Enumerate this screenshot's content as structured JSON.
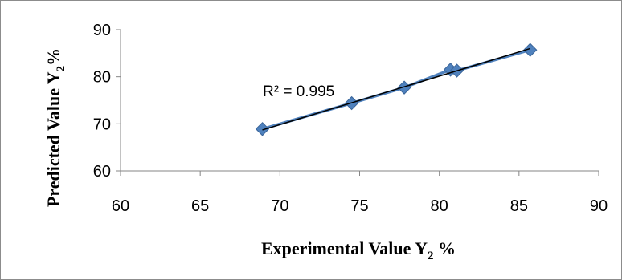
{
  "chart_data": {
    "type": "scatter",
    "xlabel": "Experimental Value  Y",
    "xlabel_sub": "2",
    "xlabel_suffix": " %",
    "ylabel": "Predicted Value  Y",
    "ylabel_sub": "2",
    "ylabel_suffix": "%",
    "xlim": [
      60,
      90
    ],
    "ylim": [
      60,
      90
    ],
    "xticks": [
      "60",
      "65",
      "70",
      "75",
      "80",
      "85",
      "90"
    ],
    "yticks": [
      "60",
      "70",
      "80",
      "90"
    ],
    "series": [
      {
        "x": [
          68.9,
          74.5,
          77.8,
          80.7,
          81.1,
          85.7
        ],
        "y": [
          68.9,
          74.4,
          77.7,
          81.5,
          81.3,
          85.7
        ],
        "color": "#4f81bd"
      }
    ],
    "trendline": {
      "type": "linear",
      "x": [
        68.9,
        85.7
      ],
      "y": [
        68.7,
        86.0
      ],
      "color": "#000000"
    },
    "annotation": "R² = 0.995",
    "grid": false,
    "legend": "none"
  }
}
